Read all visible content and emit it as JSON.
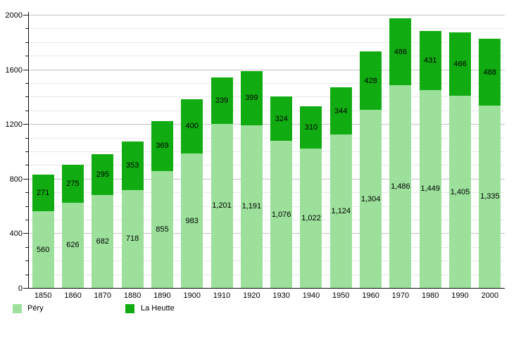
{
  "chart_data": {
    "type": "bar",
    "stacked": true,
    "title": "",
    "xlabel": "",
    "ylabel": "",
    "categories": [
      "1850",
      "1860",
      "1870",
      "1880",
      "1890",
      "1900",
      "1910",
      "1920",
      "1930",
      "1940",
      "1950",
      "1960",
      "1970",
      "1980",
      "1990",
      "2000"
    ],
    "series": [
      {
        "name": "Péry",
        "color": "#9CE09C",
        "values": [
          560,
          626,
          682,
          718,
          855,
          983,
          1201,
          1191,
          1076,
          1022,
          1124,
          1304,
          1486,
          1449,
          1405,
          1335
        ],
        "labels": [
          "560",
          "626",
          "682",
          "718",
          "855",
          "983",
          "1,201",
          "1,191",
          "1,076",
          "1,022",
          "1,124",
          "1,304",
          "1,486",
          "1,449",
          "1,405",
          "1,335"
        ]
      },
      {
        "name": "La Heutte",
        "color": "#11AC11",
        "values": [
          271,
          275,
          295,
          353,
          369,
          400,
          339,
          399,
          324,
          310,
          344,
          428,
          486,
          431,
          466,
          488
        ],
        "labels": [
          "271",
          "275",
          "295",
          "353",
          "369",
          "400",
          "339",
          "399",
          "324",
          "310",
          "344",
          "428",
          "486",
          "431",
          "466",
          "488"
        ]
      }
    ],
    "ylim": [
      0,
      2000
    ],
    "y_major_step": 400,
    "y_minor_step": 100,
    "y_tick_labels": [
      "0",
      "400",
      "800",
      "1200",
      "1600",
      "2000"
    ],
    "grid": true,
    "legend_position": "bottom"
  },
  "legend": {
    "items": [
      {
        "label": "Péry",
        "color": "#9CE09C"
      },
      {
        "label": "La Heutte",
        "color": "#11AC11"
      }
    ]
  }
}
